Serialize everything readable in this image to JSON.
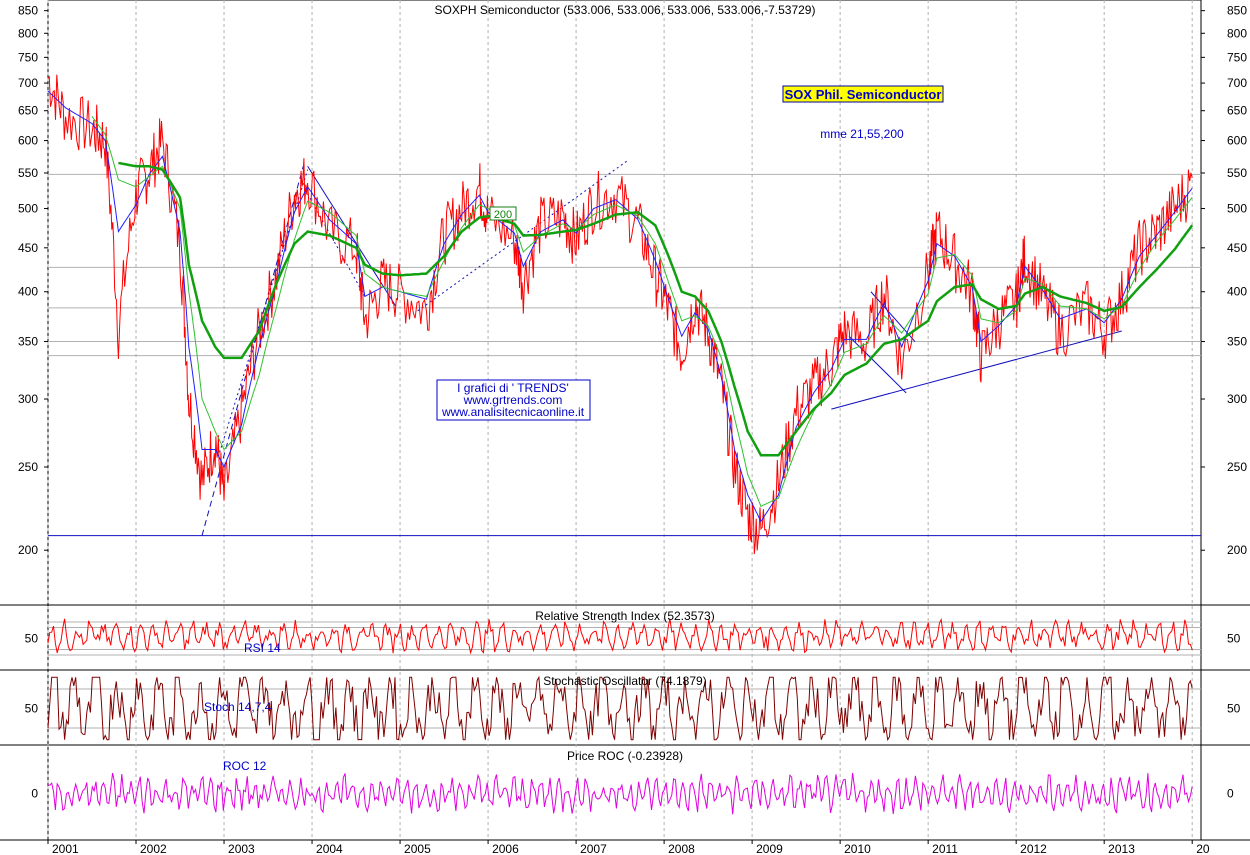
{
  "colors": {
    "price": "#ff0000",
    "ma_fast": "#2020ff",
    "ma_mid": "#30c030",
    "ma_slow": "#10a010",
    "rsi": "#ff0000",
    "stoch": "#800000",
    "roc": "#e000e0",
    "trend": "#1010c0",
    "grid": "#b0b0b0",
    "title_box_bg": "#ffff00"
  },
  "chart_data": [
    {
      "type": "line",
      "panel": "price",
      "title": "SOXPH Semiconductor (533.006, 533.006, 533.006, 533.006,-7.53729)",
      "badge": "SOX Phil. Semiconductor",
      "ma_label": "mme 21,55,200",
      "ma200_tag": "200",
      "watermark": [
        "I grafici di ' TRENDS'",
        "www.grtrends.com",
        "www.analisitecnicaonline.it"
      ],
      "y_scale": "log",
      "ylim": [
        175,
        870
      ],
      "y_ticks": [
        850,
        800,
        750,
        700,
        650,
        600,
        550,
        500,
        450,
        400,
        350,
        300,
        250,
        200
      ],
      "x_range": [
        2001.0,
        2014.1
      ],
      "x_ticks": [
        "2001",
        "2002",
        "2003",
        "2004",
        "2005",
        "2006",
        "2007",
        "2008",
        "2009",
        "2010",
        "2011",
        "2012",
        "2013",
        "20"
      ],
      "horizontal_lines": [
        548,
        427,
        383,
        350,
        337,
        208
      ],
      "x": [
        2001.0,
        2001.2,
        2001.5,
        2001.65,
        2001.8,
        2002.0,
        2002.15,
        2002.3,
        2002.5,
        2002.6,
        2002.75,
        2002.9,
        2003.0,
        2003.2,
        2003.4,
        2003.6,
        2003.8,
        2003.95,
        2004.2,
        2004.5,
        2004.6,
        2004.8,
        2005.0,
        2005.3,
        2005.5,
        2005.7,
        2005.9,
        2006.0,
        2006.3,
        2006.4,
        2006.6,
        2006.85,
        2007.0,
        2007.2,
        2007.45,
        2007.7,
        2007.9,
        2008.05,
        2008.2,
        2008.35,
        2008.5,
        2008.65,
        2008.8,
        2008.95,
        2009.1,
        2009.3,
        2009.5,
        2009.7,
        2009.9,
        2010.05,
        2010.3,
        2010.5,
        2010.7,
        2011.0,
        2011.1,
        2011.3,
        2011.5,
        2011.6,
        2011.8,
        2012.0,
        2012.1,
        2012.3,
        2012.5,
        2012.8,
        2013.0,
        2013.2,
        2013.4,
        2013.6,
        2013.8,
        2014.0
      ],
      "series": [
        {
          "values": [
            710,
            640,
            620,
            600,
            360,
            520,
            555,
            600,
            450,
            300,
            240,
            270,
            230,
            290,
            360,
            420,
            520,
            545,
            470,
            450,
            370,
            410,
            400,
            380,
            465,
            500,
            530,
            490,
            460,
            410,
            480,
            490,
            460,
            510,
            520,
            480,
            420,
            380,
            340,
            390,
            360,
            310,
            250,
            220,
            210,
            240,
            290,
            310,
            330,
            360,
            350,
            400,
            330,
            420,
            470,
            435,
            400,
            335,
            370,
            390,
            440,
            395,
            360,
            385,
            360,
            395,
            450,
            470,
            500,
            535
          ]
        }
      ],
      "ma_fast": [
        685,
        655,
        628,
        600,
        470,
        505,
        548,
        575,
        470,
        345,
        262,
        262,
        250,
        280,
        345,
        410,
        495,
        530,
        485,
        455,
        395,
        405,
        400,
        392,
        455,
        492,
        518,
        495,
        468,
        428,
        470,
        485,
        468,
        500,
        512,
        486,
        435,
        392,
        355,
        378,
        362,
        318,
        262,
        232,
        216,
        232,
        278,
        305,
        325,
        352,
        352,
        388,
        345,
        412,
        455,
        440,
        405,
        350,
        365,
        385,
        428,
        402,
        372,
        382,
        368,
        392,
        440,
        466,
        495,
        528
      ],
      "ma_mid": [
        null,
        null,
        640,
        610,
        540,
        530,
        545,
        560,
        500,
        400,
        300,
        275,
        262,
        275,
        320,
        385,
        460,
        510,
        495,
        465,
        420,
        405,
        400,
        395,
        435,
        475,
        505,
        500,
        478,
        445,
        465,
        480,
        472,
        492,
        505,
        490,
        455,
        410,
        370,
        375,
        365,
        335,
        285,
        245,
        225,
        230,
        262,
        290,
        312,
        340,
        348,
        375,
        358,
        398,
        438,
        442,
        418,
        372,
        368,
        380,
        415,
        408,
        385,
        382,
        372,
        385,
        425,
        458,
        485,
        515
      ],
      "ma_slow": [
        null,
        null,
        null,
        null,
        565,
        560,
        560,
        555,
        515,
        430,
        370,
        345,
        335,
        335,
        360,
        410,
        455,
        470,
        465,
        450,
        430,
        420,
        418,
        420,
        440,
        470,
        488,
        490,
        480,
        465,
        466,
        470,
        472,
        480,
        492,
        495,
        478,
        440,
        400,
        395,
        380,
        350,
        310,
        275,
        258,
        258,
        275,
        292,
        305,
        320,
        330,
        348,
        352,
        370,
        390,
        405,
        408,
        392,
        382,
        385,
        398,
        405,
        395,
        388,
        380,
        384,
        405,
        425,
        448,
        478
      ]
    },
    {
      "type": "line",
      "panel": "rsi",
      "title": "Relative Strength Index (52.3573)",
      "label": "RSI 14",
      "ylim": [
        0,
        100
      ],
      "y_ticks": [
        50
      ],
      "grid_levels": [
        80,
        70,
        30,
        20
      ]
    },
    {
      "type": "line",
      "panel": "stoch",
      "title": "Stochastic Oscillator (74.1879)",
      "label": "Stoch 14,7,4",
      "ylim": [
        0,
        100
      ],
      "y_ticks": [
        50
      ],
      "grid_levels": [
        80,
        20
      ]
    },
    {
      "type": "line",
      "panel": "roc",
      "title": "Price ROC (-0.23928)",
      "label": "ROC 12",
      "ylim": [
        -50,
        50
      ],
      "y_ticks": [
        0
      ]
    }
  ]
}
